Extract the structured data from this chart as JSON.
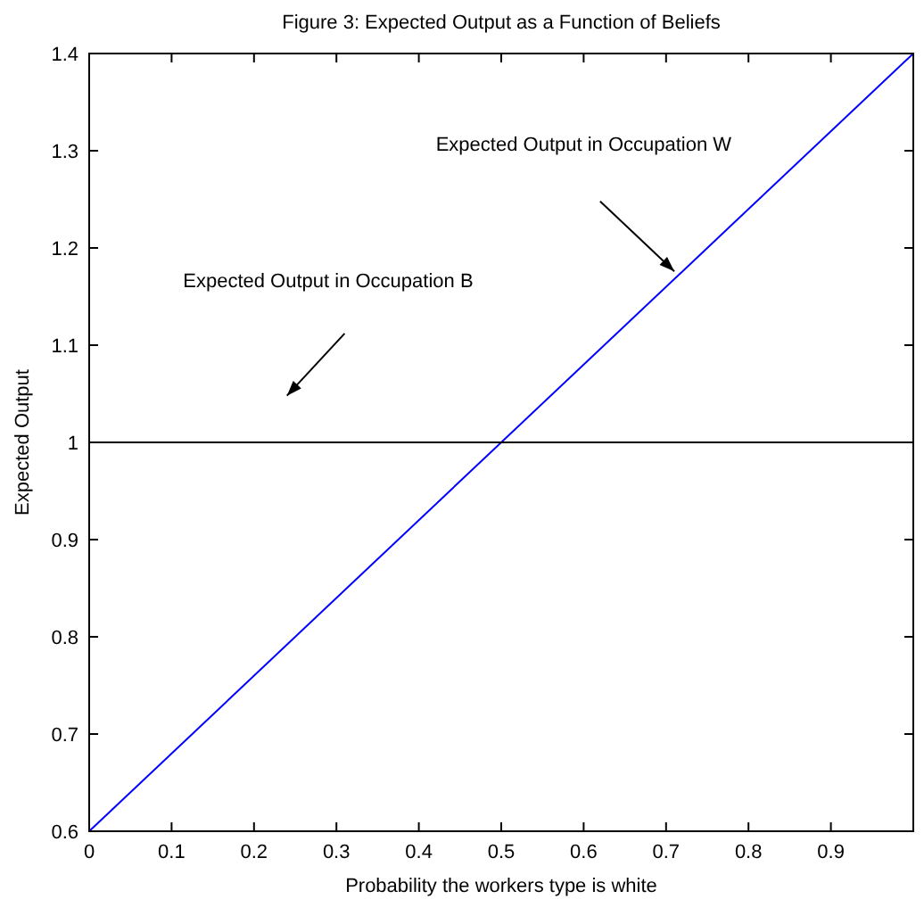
{
  "chart_data": {
    "type": "line",
    "title": "Figure 3: Expected Output as a Function of Beliefs",
    "xlabel": "Probability the workers type is white",
    "ylabel": "Expected Output",
    "x": [
      0,
      1
    ],
    "series": [
      {
        "color": "#0000ff",
        "values": [
          0.6,
          1.4
        ]
      },
      {
        "color": "#000000",
        "values": [
          1,
          1
        ]
      }
    ],
    "xlim": [
      0,
      1
    ],
    "xticks": [
      0,
      0.1,
      0.2,
      0.3,
      0.4,
      0.5,
      0.6,
      0.7,
      0.8,
      0.9
    ],
    "ylim": [
      0.6,
      1.4
    ],
    "yticks": [
      0.6,
      0.7,
      0.8,
      0.9,
      1,
      1.1,
      1.2,
      1.3,
      1.4
    ],
    "annotations": [
      "Expected Output in Occupation W",
      "Expected Output in Occupation B"
    ],
    "grid": false
  }
}
